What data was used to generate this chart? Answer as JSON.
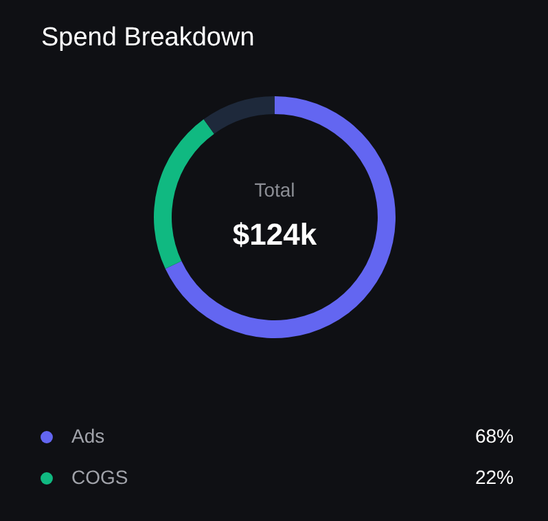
{
  "chart_data": {
    "type": "donut",
    "title": "Spend Breakdown",
    "categories": [
      "Ads",
      "COGS",
      null
    ],
    "values": [
      68,
      22,
      10
    ],
    "colors": [
      "#6366f1",
      "#10b981",
      "#1e293b"
    ],
    "value_labels": [
      "68%",
      "22%",
      null
    ],
    "annotations": [
      "Total",
      "$124k"
    ],
    "legend": "bottom"
  }
}
